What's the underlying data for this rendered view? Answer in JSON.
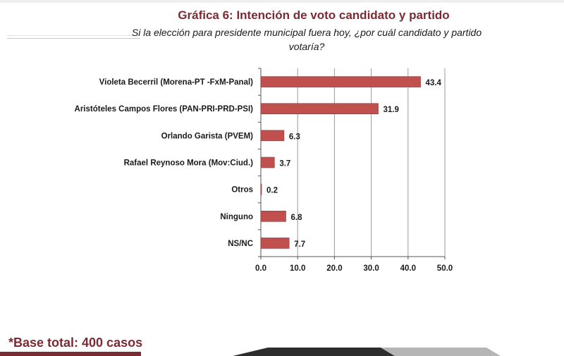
{
  "title": "Gráfica 6: Intención de voto candidato y partido",
  "subtitle": "Si  la elección para presidente municipal fuera hoy, ¿por cuál candidato y partido votaría?",
  "footnote": "*Base total: 400 casos",
  "chart_data": {
    "type": "bar",
    "orientation": "horizontal",
    "title": "Gráfica 6: Intención de voto candidato y partido",
    "xlabel": "",
    "ylabel": "",
    "xlim": [
      0,
      50
    ],
    "x_ticks": [
      "0.0",
      "10.0",
      "20.0",
      "30.0",
      "40.0",
      "50.0"
    ],
    "grid": true,
    "legend": "none",
    "categories": [
      "Violeta Becerril (Morena-PT -FxM-Panal)",
      "Aristóteles Campos Flores (PAN-PRI-PRD-PSI)",
      "Orlando Garista (PVEM)",
      "Rafael Reynoso Mora (Mov:Ciud.)",
      "Otros",
      "Ninguno",
      "NS/NC"
    ],
    "values": [
      43.4,
      31.9,
      6.3,
      3.7,
      0.2,
      6.8,
      7.7
    ],
    "value_labels": [
      "43.4",
      "31.9",
      "6.3",
      "3.7",
      "0.2",
      "6.8",
      "7.7"
    ],
    "bar_color": "#c0504d"
  },
  "colors": {
    "accent": "#7b2b33",
    "bar": "#c0504d",
    "bar_edge": "#8e3a38",
    "grid": "#9a9a9a"
  }
}
